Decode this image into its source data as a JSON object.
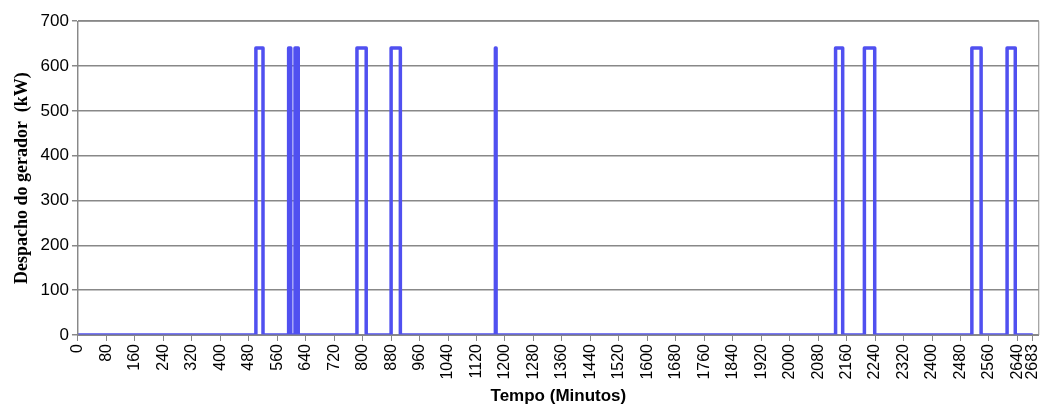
{
  "chart_data": {
    "type": "line",
    "xlabel": "Tempo (Minutos)",
    "ylabel": "Despacho do gerador  (kW)",
    "x": [
      0,
      500,
      500,
      520,
      520,
      592,
      592,
      598,
      598,
      610,
      610,
      619,
      619,
      784,
      784,
      810,
      810,
      880,
      880,
      906,
      906,
      1173,
      1173,
      1175,
      1175,
      2129,
      2129,
      2149,
      2149,
      2210,
      2210,
      2239,
      2239,
      2512,
      2512,
      2538,
      2538,
      2611,
      2611,
      2634,
      2634,
      2683
    ],
    "series": [
      {
        "color": "#5050f0",
        "values": [
          0,
          0,
          640,
          640,
          0,
          0,
          640,
          640,
          0,
          0,
          640,
          640,
          0,
          0,
          640,
          640,
          0,
          0,
          640,
          640,
          0,
          0,
          640,
          640,
          0,
          0,
          640,
          640,
          0,
          0,
          640,
          640,
          0,
          0,
          640,
          640,
          0,
          0,
          640,
          640,
          0,
          0
        ]
      }
    ],
    "xlim": [
      0,
      2700
    ],
    "xticks": [
      0,
      80,
      160,
      240,
      320,
      400,
      480,
      560,
      640,
      720,
      800,
      880,
      960,
      1040,
      1120,
      1200,
      1280,
      1360,
      1440,
      1520,
      1600,
      1680,
      1760,
      1840,
      1920,
      2000,
      2080,
      2160,
      2240,
      2320,
      2400,
      2480,
      2560,
      2640,
      2683
    ],
    "ylim": [
      0,
      700
    ],
    "yticks": [
      0,
      100,
      200,
      300,
      400,
      500,
      600,
      700
    ],
    "grid": "y",
    "legend": false,
    "line_style": "solid",
    "marker": "none"
  }
}
